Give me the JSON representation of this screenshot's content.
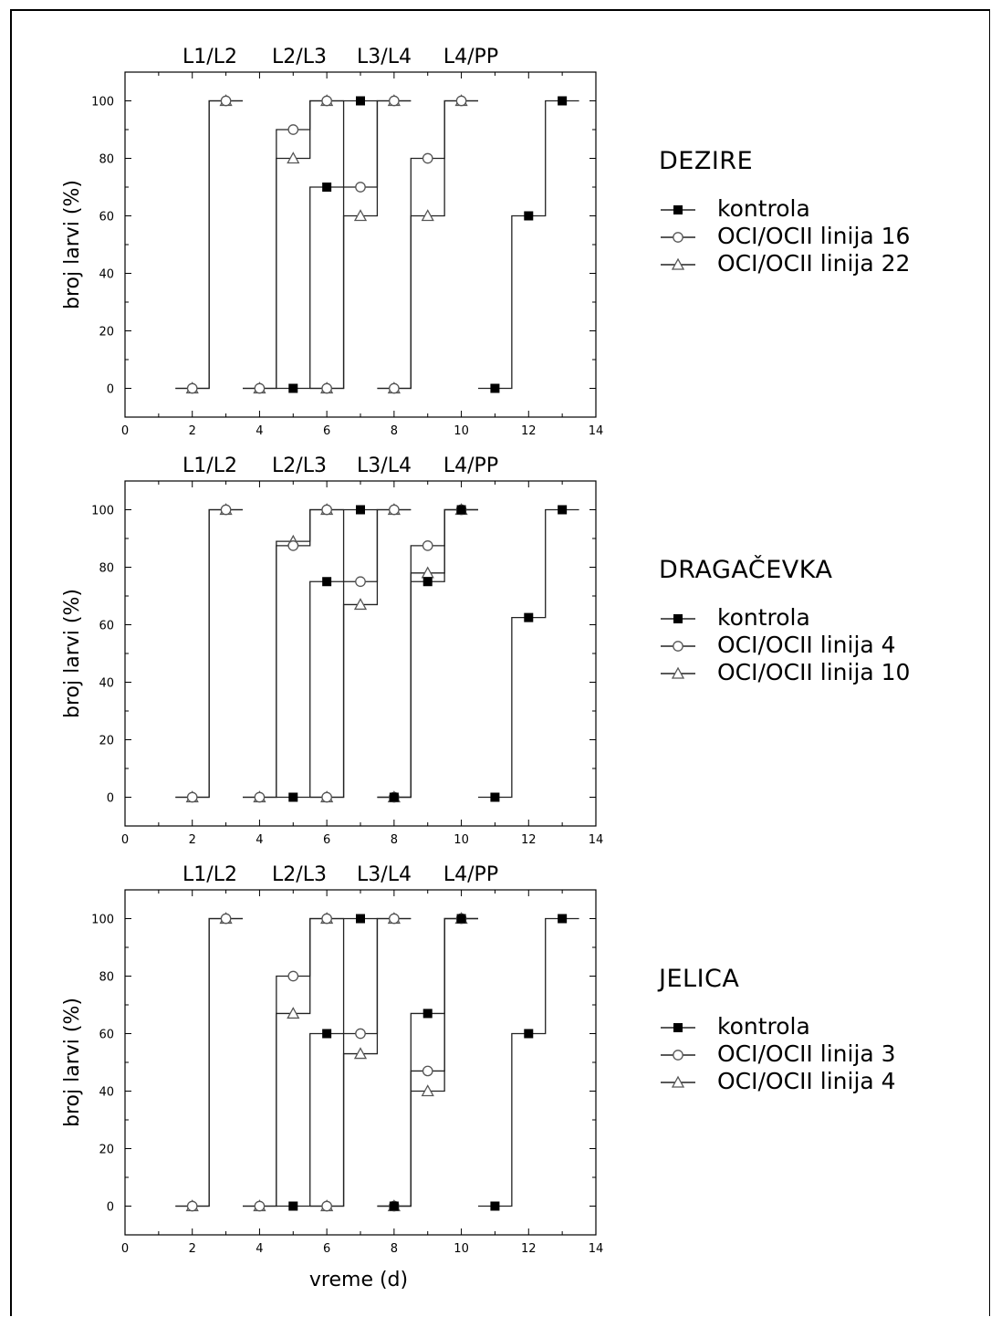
{
  "chart_data": [
    {
      "type": "line",
      "step": true,
      "title": "DEZIRE",
      "stage_labels": [
        "L1/L2",
        "L2/L3",
        "L3/L4",
        "L4/PP"
      ],
      "xlabel": "",
      "ylabel": "broj larvi (%)",
      "xlim": [
        0,
        14
      ],
      "ylim": [
        -10,
        110
      ],
      "xticks": [
        0,
        2,
        4,
        6,
        8,
        10,
        12,
        14
      ],
      "yticks": [
        0,
        20,
        40,
        60,
        80,
        100
      ],
      "grid": false,
      "legend_position": "right",
      "series": [
        {
          "name": "kontrola",
          "marker": "square-filled",
          "segments": [
            {
              "x": [
                5,
                6,
                7
              ],
              "y": [
                0,
                70,
                100
              ]
            },
            {
              "x": [
                11,
                12,
                13
              ],
              "y": [
                0,
                60,
                100
              ]
            }
          ]
        },
        {
          "name": "OCI/OCII linija 16",
          "marker": "circle-open",
          "segments": [
            {
              "x": [
                2,
                3
              ],
              "y": [
                0,
                100
              ]
            },
            {
              "x": [
                4,
                5,
                6
              ],
              "y": [
                0,
                90,
                100
              ]
            },
            {
              "x": [
                6,
                7,
                8
              ],
              "y": [
                0,
                70,
                100
              ]
            },
            {
              "x": [
                8,
                9,
                10
              ],
              "y": [
                0,
                80,
                100
              ]
            }
          ]
        },
        {
          "name": "OCI/OCII linija 22",
          "marker": "triangle-open",
          "segments": [
            {
              "x": [
                2,
                3
              ],
              "y": [
                0,
                100
              ]
            },
            {
              "x": [
                4,
                5,
                6
              ],
              "y": [
                0,
                80,
                100
              ]
            },
            {
              "x": [
                6,
                7,
                8
              ],
              "y": [
                0,
                60,
                100
              ]
            },
            {
              "x": [
                8,
                9,
                10
              ],
              "y": [
                0,
                60,
                100
              ]
            }
          ]
        }
      ]
    },
    {
      "type": "line",
      "step": true,
      "title": "DRAGAČEVKA",
      "stage_labels": [
        "L1/L2",
        "L2/L3",
        "L3/L4",
        "L4/PP"
      ],
      "xlabel": "",
      "ylabel": "broj larvi (%)",
      "xlim": [
        0,
        14
      ],
      "ylim": [
        -10,
        110
      ],
      "xticks": [
        0,
        2,
        4,
        6,
        8,
        10,
        12,
        14
      ],
      "yticks": [
        0,
        20,
        40,
        60,
        80,
        100
      ],
      "grid": false,
      "legend_position": "right",
      "series": [
        {
          "name": "kontrola",
          "marker": "square-filled",
          "segments": [
            {
              "x": [
                5,
                6,
                7
              ],
              "y": [
                0,
                75,
                100
              ]
            },
            {
              "x": [
                8,
                9,
                10
              ],
              "y": [
                0,
                75,
                100
              ]
            },
            {
              "x": [
                11,
                12,
                13
              ],
              "y": [
                0,
                62.5,
                100
              ]
            }
          ]
        },
        {
          "name": "OCI/OCII linija 4",
          "marker": "circle-open",
          "segments": [
            {
              "x": [
                2,
                3
              ],
              "y": [
                0,
                100
              ]
            },
            {
              "x": [
                4,
                5,
                6
              ],
              "y": [
                0,
                87.5,
                100
              ]
            },
            {
              "x": [
                6,
                7,
                8
              ],
              "y": [
                0,
                75,
                100
              ]
            },
            {
              "x": [
                8,
                9,
                10
              ],
              "y": [
                0,
                87.5,
                100
              ]
            }
          ]
        },
        {
          "name": "OCI/OCII linija 10",
          "marker": "triangle-open",
          "segments": [
            {
              "x": [
                2,
                3
              ],
              "y": [
                0,
                100
              ]
            },
            {
              "x": [
                4,
                5,
                6
              ],
              "y": [
                0,
                89,
                100
              ]
            },
            {
              "x": [
                6,
                7,
                8
              ],
              "y": [
                0,
                67,
                100
              ]
            },
            {
              "x": [
                8,
                9,
                10
              ],
              "y": [
                0,
                78,
                100
              ]
            }
          ]
        }
      ]
    },
    {
      "type": "line",
      "step": true,
      "title": "JELICA",
      "stage_labels": [
        "L1/L2",
        "L2/L3",
        "L3/L4",
        "L4/PP"
      ],
      "xlabel": "vreme (d)",
      "ylabel": "broj larvi (%)",
      "xlim": [
        0,
        14
      ],
      "ylim": [
        -10,
        110
      ],
      "xticks": [
        0,
        2,
        4,
        6,
        8,
        10,
        12,
        14
      ],
      "yticks": [
        0,
        20,
        40,
        60,
        80,
        100
      ],
      "grid": false,
      "legend_position": "right",
      "series": [
        {
          "name": "kontrola",
          "marker": "square-filled",
          "segments": [
            {
              "x": [
                5,
                6,
                7
              ],
              "y": [
                0,
                60,
                100
              ]
            },
            {
              "x": [
                8,
                9,
                10
              ],
              "y": [
                0,
                67,
                100
              ]
            },
            {
              "x": [
                11,
                12,
                13
              ],
              "y": [
                0,
                60,
                100
              ]
            }
          ]
        },
        {
          "name": "OCI/OCII linija 3",
          "marker": "circle-open",
          "segments": [
            {
              "x": [
                2,
                3
              ],
              "y": [
                0,
                100
              ]
            },
            {
              "x": [
                4,
                5,
                6
              ],
              "y": [
                0,
                80,
                100
              ]
            },
            {
              "x": [
                6,
                7,
                8
              ],
              "y": [
                0,
                60,
                100
              ]
            },
            {
              "x": [
                8,
                9,
                10
              ],
              "y": [
                0,
                47,
                100
              ]
            }
          ]
        },
        {
          "name": "OCI/OCII linija 4",
          "marker": "triangle-open",
          "segments": [
            {
              "x": [
                2,
                3
              ],
              "y": [
                0,
                100
              ]
            },
            {
              "x": [
                4,
                5,
                6
              ],
              "y": [
                0,
                67,
                100
              ]
            },
            {
              "x": [
                6,
                7,
                8
              ],
              "y": [
                0,
                53,
                100
              ]
            },
            {
              "x": [
                8,
                9,
                10
              ],
              "y": [
                0,
                40,
                100
              ]
            }
          ]
        }
      ]
    }
  ]
}
